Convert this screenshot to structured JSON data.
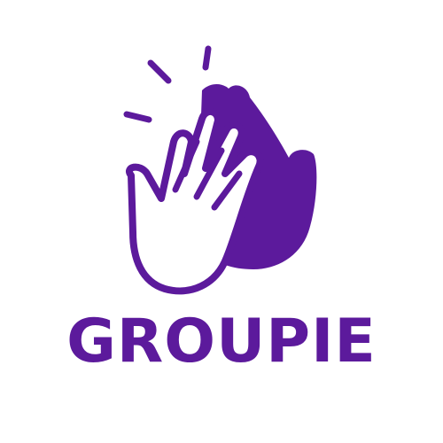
{
  "brand": {
    "name": "GROUPIE",
    "colors": {
      "primary": "#5c1a9c",
      "background": "#ffffff"
    },
    "mark_icon": "high-five-icon",
    "burst_icon": "impact-lines-icon"
  }
}
